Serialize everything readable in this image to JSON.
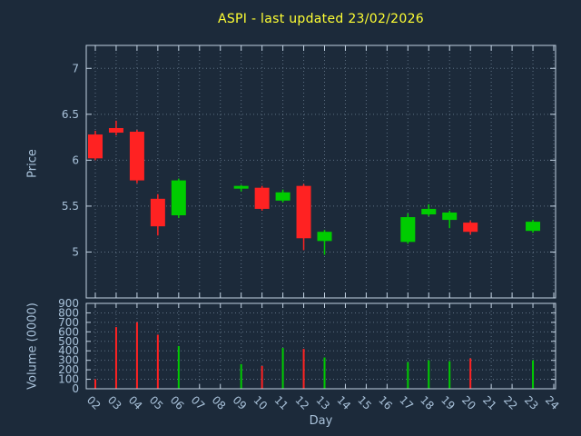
{
  "chart_data": {
    "type": "candlestick",
    "title": "ASPI - last updated 23/02/2026",
    "xlabel": "Day",
    "ylabel": "Price",
    "ylabel2": "Volume (0000)",
    "grid": true,
    "legend": "none",
    "x_tick_labels": [
      "02",
      "03",
      "04",
      "05",
      "06",
      "07",
      "08",
      "09",
      "10",
      "11",
      "12",
      "13",
      "14",
      "15",
      "16",
      "17",
      "18",
      "19",
      "20",
      "21",
      "22",
      "23",
      "24"
    ],
    "price_axis": {
      "min": 4.5,
      "max": 7.25,
      "ticks": [
        5,
        5.5,
        6,
        6.5,
        7
      ]
    },
    "volume_axis": {
      "min": 0,
      "max": 900,
      "ticks": [
        0,
        100,
        200,
        300,
        400,
        500,
        600,
        700,
        800,
        900
      ]
    },
    "colors": {
      "up": "#00cc00",
      "down": "#ff2222",
      "title": "#ffff33",
      "axis_text": "#a9c2da",
      "grid": "#9db4ca",
      "border": "#c2d2e2",
      "background": "#1c2a3a"
    },
    "candles": [
      {
        "day": 2,
        "open": 6.28,
        "high": 6.32,
        "low": 6.0,
        "close": 6.02,
        "volume": 100
      },
      {
        "day": 3,
        "open": 6.35,
        "high": 6.43,
        "low": 6.27,
        "close": 6.3,
        "volume": 650
      },
      {
        "day": 4,
        "open": 6.31,
        "high": 6.33,
        "low": 5.75,
        "close": 5.78,
        "volume": 700
      },
      {
        "day": 5,
        "open": 5.58,
        "high": 5.63,
        "low": 5.18,
        "close": 5.28,
        "volume": 570
      },
      {
        "day": 6,
        "open": 5.4,
        "high": 5.8,
        "low": 5.37,
        "close": 5.78,
        "volume": 450
      },
      {
        "day": 9,
        "open": 5.69,
        "high": 5.73,
        "low": 5.66,
        "close": 5.72,
        "volume": 260
      },
      {
        "day": 10,
        "open": 5.7,
        "high": 5.72,
        "low": 5.45,
        "close": 5.47,
        "volume": 240
      },
      {
        "day": 11,
        "open": 5.56,
        "high": 5.68,
        "low": 5.54,
        "close": 5.65,
        "volume": 430
      },
      {
        "day": 12,
        "open": 5.72,
        "high": 5.74,
        "low": 5.02,
        "close": 5.15,
        "volume": 420
      },
      {
        "day": 13,
        "open": 5.12,
        "high": 5.24,
        "low": 4.97,
        "close": 5.22,
        "volume": 330
      },
      {
        "day": 17,
        "open": 5.11,
        "high": 5.42,
        "low": 5.09,
        "close": 5.38,
        "volume": 280
      },
      {
        "day": 18,
        "open": 5.41,
        "high": 5.52,
        "low": 5.39,
        "close": 5.47,
        "volume": 300
      },
      {
        "day": 19,
        "open": 5.35,
        "high": 5.45,
        "low": 5.26,
        "close": 5.43,
        "volume": 290
      },
      {
        "day": 20,
        "open": 5.32,
        "high": 5.34,
        "low": 5.19,
        "close": 5.22,
        "volume": 320
      },
      {
        "day": 23,
        "open": 5.23,
        "high": 5.35,
        "low": 5.21,
        "close": 5.33,
        "volume": 300
      }
    ]
  }
}
